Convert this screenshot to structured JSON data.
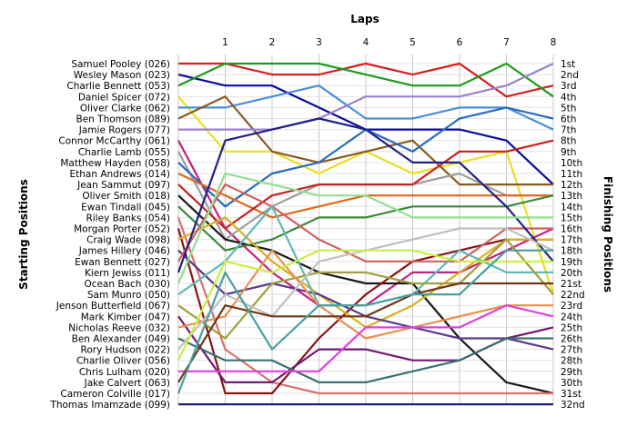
{
  "chart_data": {
    "type": "line",
    "title": "Laps",
    "ylabel_left": "Starting Positions",
    "ylabel_right": "Finishing Positions",
    "laps": [
      1,
      2,
      3,
      4,
      5,
      6,
      7,
      8
    ],
    "finish_labels": [
      "1st",
      "2nd",
      "3rd",
      "4th",
      "5th",
      "6th",
      "7th",
      "8th",
      "9th",
      "10th",
      "11th",
      "12th",
      "13th",
      "14th",
      "15th",
      "16th",
      "17th",
      "18th",
      "19th",
      "20th",
      "21st",
      "22nd",
      "23rd",
      "24th",
      "25th",
      "26th",
      "27th",
      "28th",
      "29th",
      "30th",
      "31st",
      "32nd"
    ],
    "grid": true,
    "series": [
      {
        "name": "Samuel Pooley (026)",
        "color": "#d62020",
        "positions": [
          1,
          1,
          2,
          2,
          1,
          2,
          1,
          4,
          3
        ]
      },
      {
        "name": "Wesley Mason (023)",
        "color": "#0b0b9c",
        "positions": [
          2,
          3,
          3,
          5,
          7,
          7,
          7,
          8,
          12
        ]
      },
      {
        "name": "Charlie Bennett (053)",
        "color": "#1e9a1e",
        "positions": [
          3,
          1,
          1,
          1,
          2,
          3,
          3,
          1,
          4
        ]
      },
      {
        "name": "Daniel Spicer (072)",
        "color": "#e8e020",
        "positions": [
          4,
          9,
          9,
          11,
          9,
          11,
          10,
          9,
          22
        ]
      },
      {
        "name": "Oliver Clarke (062)",
        "color": "#4a8fd8",
        "positions": [
          5,
          5,
          4,
          3,
          6,
          6,
          5,
          5,
          7
        ]
      },
      {
        "name": "Ben Thomson (089)",
        "color": "#8a5a20",
        "positions": [
          6,
          4,
          9,
          10,
          9,
          8,
          12,
          12,
          12
        ]
      },
      {
        "name": "Jamie Rogers (077)",
        "color": "#9a80d0",
        "positions": [
          7,
          7,
          7,
          6,
          4,
          4,
          4,
          3,
          1
        ]
      },
      {
        "name": "Connor McCarthy (061)",
        "color": "#c42080",
        "positions": [
          8,
          16,
          20,
          23,
          23,
          20,
          20,
          18,
          16
        ]
      },
      {
        "name": "Charlie Lamb (055)",
        "color": "#9e9e9e",
        "positions": [
          9,
          17,
          14,
          12,
          12,
          12,
          11,
          13,
          13
        ]
      },
      {
        "name": "Matthew Hayden (058)",
        "color": "#2a6ac0",
        "positions": [
          10,
          14,
          11,
          10,
          7,
          9,
          6,
          5,
          6
        ]
      },
      {
        "name": "Ethan Andrews (014)",
        "color": "#e06818",
        "positions": [
          11,
          13,
          15,
          14,
          13,
          13,
          13,
          13,
          13
        ]
      },
      {
        "name": "Jean Sammut (097)",
        "color": "#c82020",
        "positions": [
          12,
          16,
          13,
          12,
          12,
          12,
          9,
          9,
          8
        ]
      },
      {
        "name": "Oliver Smith (018)",
        "color": "#1a1a1a",
        "positions": [
          13,
          17,
          18,
          20,
          21,
          21,
          26,
          30,
          31
        ]
      },
      {
        "name": "Ewan Tindall (045)",
        "color": "#3a8a3a",
        "positions": [
          14,
          18,
          17,
          15,
          15,
          14,
          14,
          14,
          13
        ]
      },
      {
        "name": "Riley Banks (054)",
        "color": "#dc7070",
        "positions": [
          15,
          27,
          30,
          31,
          31,
          31,
          31,
          31,
          31
        ]
      },
      {
        "name": "Morgan Porter (052)",
        "color": "#8a1414",
        "positions": [
          16,
          31,
          31,
          26,
          22,
          19,
          18,
          17,
          17
        ]
      },
      {
        "name": "Craig Wade (098)",
        "color": "#d8b020",
        "positions": [
          17,
          15,
          19,
          22,
          25,
          23,
          20,
          17,
          17
        ]
      },
      {
        "name": "James Hillery (046)",
        "color": "#5a3a8a",
        "positions": [
          18,
          22,
          21,
          22,
          24,
          25,
          26,
          26,
          27
        ]
      },
      {
        "name": "Ewan Bennett (027)",
        "color": "#d06060",
        "positions": [
          19,
          12,
          14,
          17,
          19,
          19,
          19,
          16,
          16
        ]
      },
      {
        "name": "Kiern Jewiss (011)",
        "color": "#20208a",
        "positions": [
          20,
          8,
          7,
          6,
          7,
          10,
          10,
          14,
          19
        ]
      },
      {
        "name": "Ocean Bach (030)",
        "color": "#90e090",
        "positions": [
          21,
          11,
          12,
          13,
          13,
          15,
          15,
          15,
          15
        ]
      },
      {
        "name": "Sam Munro (050)",
        "color": "#60b8b8",
        "positions": [
          22,
          19,
          14,
          23,
          23,
          22,
          18,
          20,
          20
        ]
      },
      {
        "name": "Jenson Butterfield (067)",
        "color": "#a0a040",
        "positions": [
          23,
          26,
          21,
          20,
          20,
          21,
          21,
          17,
          22
        ]
      },
      {
        "name": "Mark Kimber (047)",
        "color": "#701a70",
        "positions": [
          24,
          30,
          30,
          27,
          27,
          28,
          28,
          26,
          25
        ]
      },
      {
        "name": "Nicholas Reeve (032)",
        "color": "#e89050",
        "positions": [
          25,
          24,
          18,
          23,
          26,
          25,
          24,
          23,
          23
        ]
      },
      {
        "name": "Ben Alexander (049)",
        "color": "#3a7070",
        "positions": [
          26,
          28,
          28,
          30,
          30,
          29,
          28,
          26,
          26
        ]
      },
      {
        "name": "Rory Hudson (022)",
        "color": "#c0c0c0",
        "positions": [
          27,
          22,
          24,
          19,
          18,
          17,
          16,
          16,
          18
        ]
      },
      {
        "name": "Charlie Oliver (056)",
        "color": "#c8f040",
        "positions": [
          28,
          19,
          20,
          18,
          18,
          18,
          19,
          19,
          19
        ]
      },
      {
        "name": "Chris Lulham (020)",
        "color": "#e040e0",
        "positions": [
          29,
          29,
          29,
          29,
          25,
          25,
          25,
          23,
          24
        ]
      },
      {
        "name": "Jake Calvert (063)",
        "color": "#703818",
        "positions": [
          30,
          23,
          24,
          24,
          24,
          22,
          21,
          21,
          21
        ]
      },
      {
        "name": "Cameron Colville (017)",
        "color": "#48a0a0",
        "positions": [
          31,
          20,
          27,
          23,
          23,
          22,
          22,
          18,
          18
        ]
      },
      {
        "name": "Thomas Imamzade (099)",
        "color": "#20207a",
        "positions": [
          32,
          32,
          32,
          32,
          32,
          32,
          32,
          32,
          32
        ]
      }
    ]
  }
}
